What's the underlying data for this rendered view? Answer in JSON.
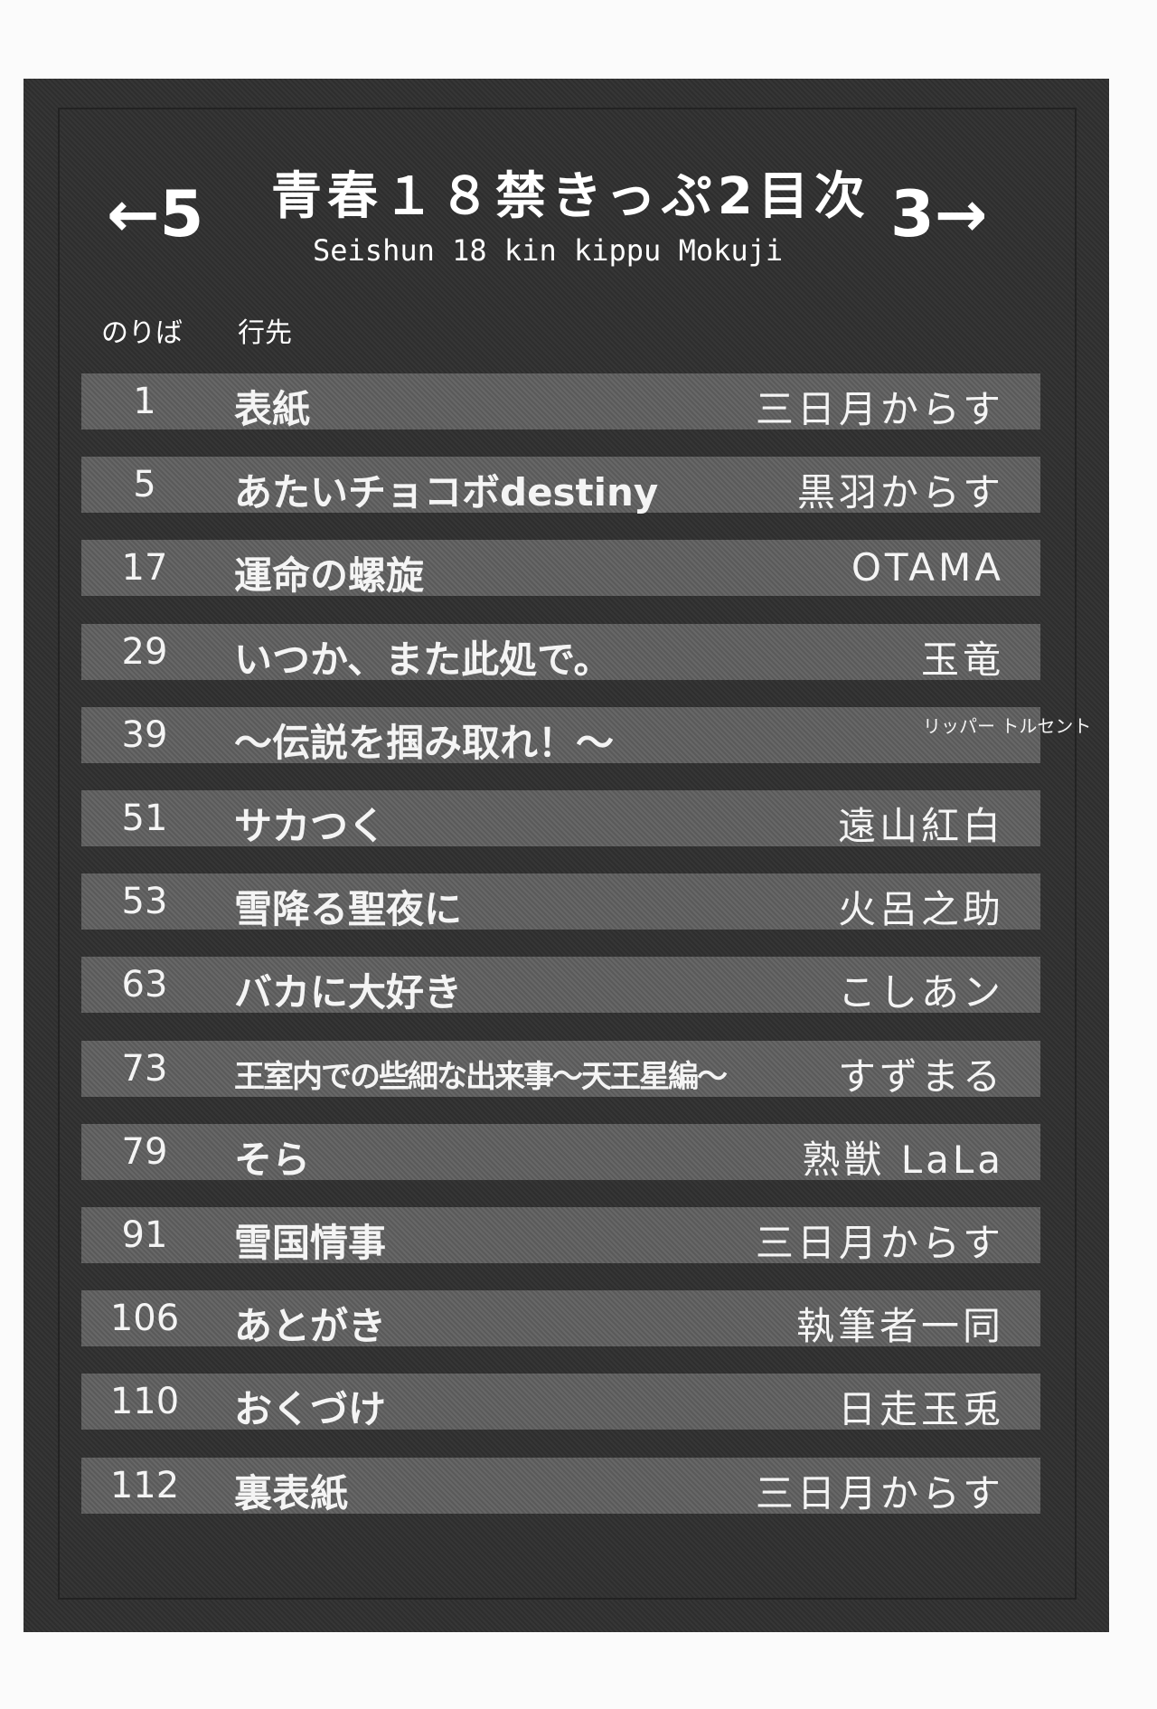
{
  "header": {
    "title": "青春１８禁きっぷ2目次",
    "subtitle": "Seishun 18 kin kippu Mokuji",
    "prev": "←5",
    "next": "3→",
    "col_platform": "のりば",
    "col_destination": "行先"
  },
  "rows": [
    {
      "page": "1",
      "title": "表紙",
      "author": "三日月からす"
    },
    {
      "page": "5",
      "title": "あたいチョコボdestiny",
      "author": "黒羽からす"
    },
    {
      "page": "17",
      "title": "運命の螺旋",
      "author": "OTAMA"
    },
    {
      "page": "29",
      "title": "いつか、また此処で。",
      "author": "玉竜"
    },
    {
      "page": "39",
      "title": "～伝説を掴み取れ！～",
      "author": "リッパー トルセント"
    },
    {
      "page": "51",
      "title": "サカつく",
      "author": "遠山紅白"
    },
    {
      "page": "53",
      "title": "雪降る聖夜に",
      "author": "火呂之助"
    },
    {
      "page": "63",
      "title": "バカに大好き",
      "author": "こしあン"
    },
    {
      "page": "73",
      "title": "王室内での些細な出来事～天王星編～",
      "author": "すずまる"
    },
    {
      "page": "79",
      "title": "そら",
      "author": "熟獣 LaLa"
    },
    {
      "page": "91",
      "title": "雪国情事",
      "author": "三日月からす"
    },
    {
      "page": "106",
      "title": "あとがき",
      "author": "執筆者一同"
    },
    {
      "page": "110",
      "title": "おくづけ",
      "author": "日走玉兎"
    },
    {
      "page": "112",
      "title": "裏表紙",
      "author": "三日月からす"
    }
  ]
}
